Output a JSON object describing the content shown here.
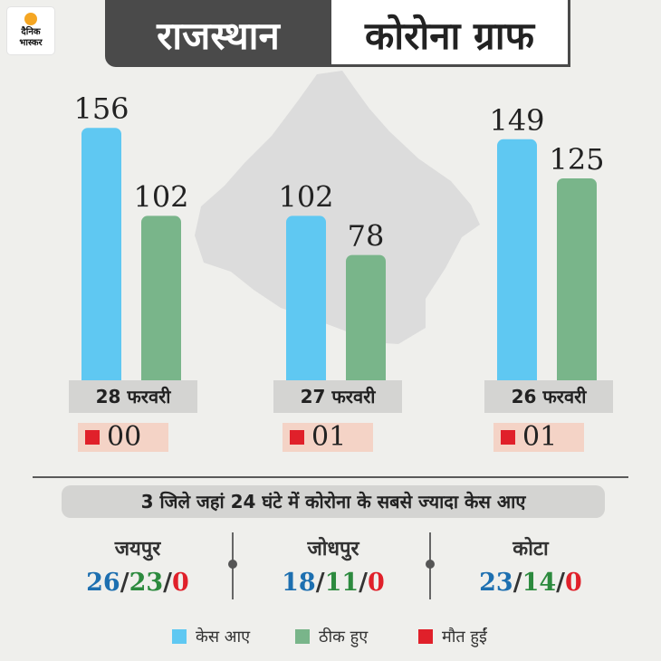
{
  "logo": {
    "line1": "दैनिक",
    "line2": "भास्कर"
  },
  "header": {
    "title_left": "राजस्थान",
    "title_right": "कोरोना ग्राफ"
  },
  "colors": {
    "cases": "#5fc8f2",
    "recovered": "#79b58a",
    "deaths": "#e0202a",
    "map": "#dcdcdc"
  },
  "chart_data": {
    "type": "bar",
    "categories": [
      "28 फरवरी",
      "27 फरवरी",
      "26 फरवरी"
    ],
    "series": [
      {
        "name": "केस आए",
        "values": [
          156,
          102,
          149
        ]
      },
      {
        "name": "ठीक हुए",
        "values": [
          102,
          78,
          125
        ]
      },
      {
        "name": "मौत हुईं",
        "values": [
          0,
          1,
          1
        ]
      }
    ],
    "value_labels": {
      "cases": [
        "156",
        "102",
        "149"
      ],
      "recovered": [
        "102",
        "78",
        "125"
      ],
      "deaths": [
        "00",
        "01",
        "01"
      ]
    },
    "legend": [
      "केस आए",
      "ठीक हुए",
      "मौत हुईं"
    ]
  },
  "districts_title": "3 जिले जहां 24 घंटे में कोरोना के सबसे ज्यादा केस आए",
  "districts": [
    {
      "name": "जयपुर",
      "cases": "26",
      "recovered": "23",
      "deaths": "0"
    },
    {
      "name": "जोधपुर",
      "cases": "18",
      "recovered": "11",
      "deaths": "0"
    },
    {
      "name": "कोटा",
      "cases": "23",
      "recovered": "14",
      "deaths": "0"
    }
  ],
  "separator": "/"
}
